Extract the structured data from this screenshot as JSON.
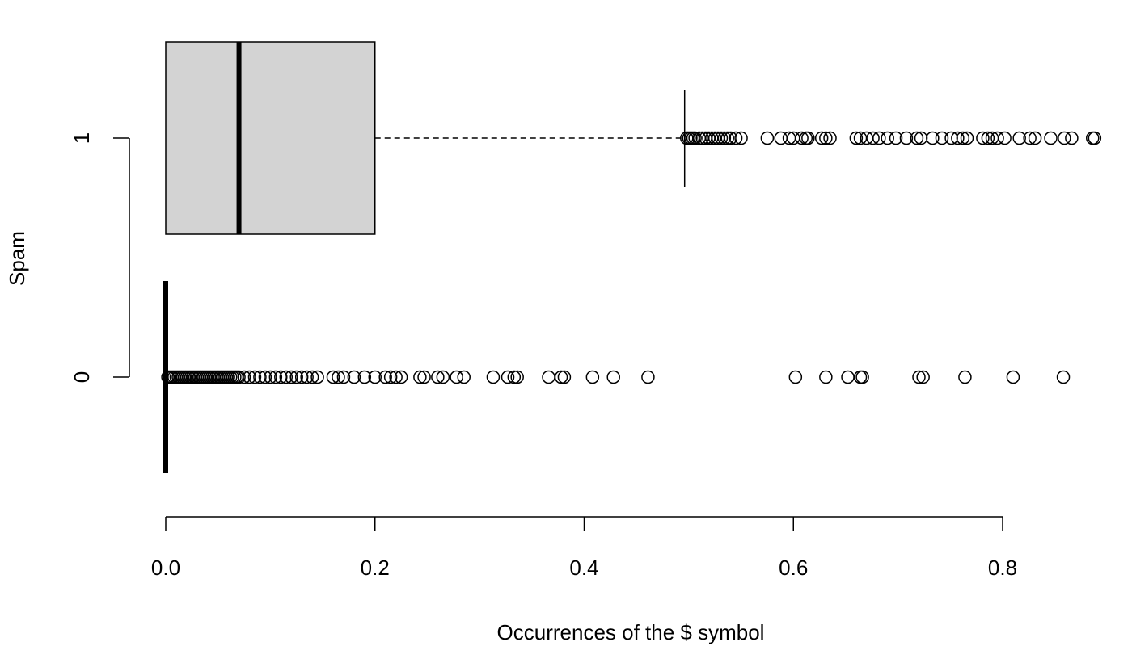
{
  "chart_data": {
    "type": "boxplot",
    "orientation": "horizontal",
    "xlabel": "Occurrences of the $ symbol",
    "ylabel": "Spam",
    "xlim": [
      0,
      0.8
    ],
    "x_ticks": [
      0,
      0.2,
      0.4,
      0.6,
      0.8
    ],
    "x_tick_labels": [
      "0.0",
      "0.2",
      "0.4",
      "0.6",
      "0.8"
    ],
    "categories": [
      "0",
      "1"
    ],
    "series": [
      {
        "category": "0",
        "min": 0,
        "q1": 0,
        "median": 0,
        "q3": 0,
        "max": 0,
        "outliers": [
          0.002,
          0.004,
          0.006,
          0.008,
          0.01,
          0.012,
          0.014,
          0.016,
          0.018,
          0.02,
          0.022,
          0.024,
          0.026,
          0.028,
          0.03,
          0.032,
          0.034,
          0.036,
          0.038,
          0.04,
          0.042,
          0.044,
          0.046,
          0.048,
          0.05,
          0.052,
          0.054,
          0.056,
          0.058,
          0.06,
          0.062,
          0.064,
          0.066,
          0.068,
          0.07,
          0.075,
          0.08,
          0.085,
          0.09,
          0.095,
          0.1,
          0.105,
          0.11,
          0.115,
          0.12,
          0.125,
          0.13,
          0.135,
          0.14,
          0.145,
          0.16,
          0.165,
          0.17,
          0.18,
          0.19,
          0.2,
          0.21,
          0.215,
          0.22,
          0.225,
          0.243,
          0.247,
          0.26,
          0.265,
          0.278,
          0.285,
          0.313,
          0.327,
          0.333,
          0.336,
          0.366,
          0.378,
          0.381,
          0.408,
          0.428,
          0.461,
          0.602,
          0.631,
          0.652,
          0.664,
          0.666,
          0.72,
          0.724,
          0.764,
          0.81,
          0.858
        ]
      },
      {
        "category": "1",
        "min": 0,
        "q1": 0,
        "median": 0.07,
        "q3": 0.2,
        "max": 0.496,
        "outliers": [
          0.498,
          0.5,
          0.502,
          0.504,
          0.506,
          0.51,
          0.513,
          0.516,
          0.519,
          0.522,
          0.525,
          0.528,
          0.531,
          0.534,
          0.537,
          0.54,
          0.545,
          0.55,
          0.575,
          0.588,
          0.596,
          0.6,
          0.608,
          0.612,
          0.614,
          0.627,
          0.631,
          0.635,
          0.66,
          0.664,
          0.67,
          0.676,
          0.682,
          0.69,
          0.698,
          0.708,
          0.718,
          0.722,
          0.733,
          0.742,
          0.751,
          0.757,
          0.762,
          0.766,
          0.781,
          0.786,
          0.79,
          0.795,
          0.802,
          0.816,
          0.826,
          0.831,
          0.846,
          0.859,
          0.866,
          0.886,
          0.888
        ]
      }
    ]
  }
}
